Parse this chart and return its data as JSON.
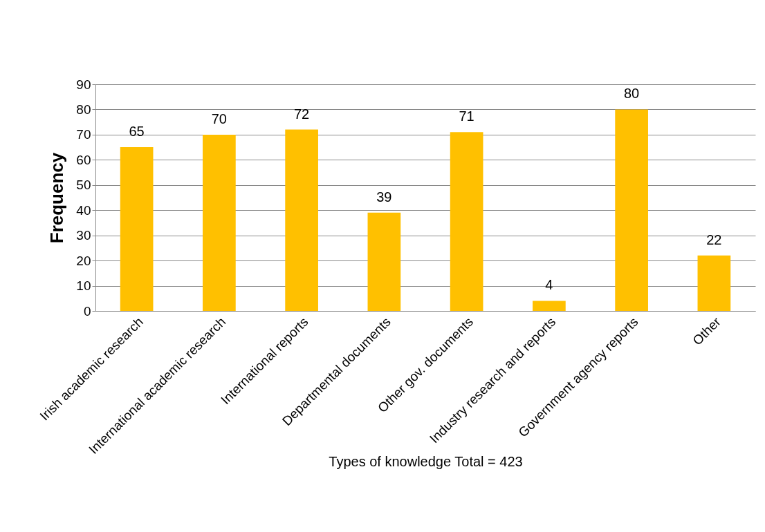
{
  "chart_data": {
    "type": "bar",
    "xlabel": "Types of knowledge  Total = 423",
    "ylabel": "Frequency",
    "categories": [
      "Irish academic research",
      "International academic research",
      "International reports",
      "Departmental documents",
      "Other gov. documents",
      "Industry research and reports",
      "Government agency reports",
      "Other"
    ],
    "values": [
      65,
      70,
      72,
      39,
      71,
      4,
      80,
      22
    ],
    "color": "#ffc000",
    "ylim": [
      0,
      90
    ],
    "yticks": [
      0,
      10,
      20,
      30,
      40,
      50,
      60,
      70,
      80,
      90
    ],
    "grid": "y",
    "data_labels": true
  }
}
